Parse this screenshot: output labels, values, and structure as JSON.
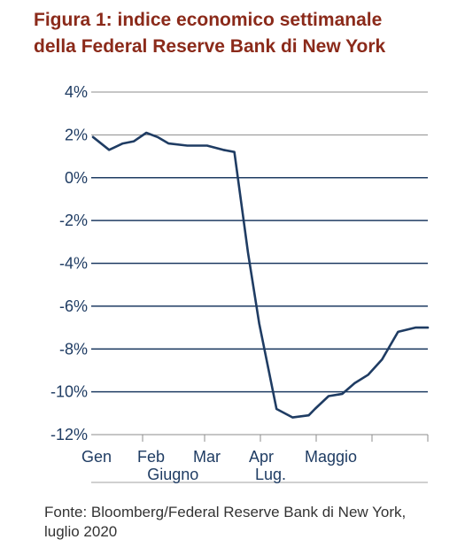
{
  "header": {
    "title_line1": "Figura 1: indice economico settimanale",
    "title_line2": "della Federal Reserve Bank di New York"
  },
  "footer": {
    "source_line1": "Fonte: Bloomberg/Federal Reserve Bank di New York,",
    "source_line2": "luglio 2020"
  },
  "colors": {
    "title": "#8B2A1A",
    "line": "#1F3C63",
    "grid": "#1F3C63",
    "axis_text": "#1F3C63"
  },
  "chart_data": {
    "type": "line",
    "title": "Figura 1: indice economico settimanale della Federal Reserve Bank di New York",
    "xlabel": "",
    "ylabel": "",
    "ylim": [
      -12,
      4
    ],
    "yticks": [
      4,
      2,
      0,
      -2,
      -4,
      -6,
      -8,
      -10,
      -12
    ],
    "ytick_labels": [
      "4%",
      "2%",
      "0%",
      "-2%",
      "-4%",
      "-6%",
      "-8%",
      "-10%",
      "-12%"
    ],
    "xlim": [
      0,
      27
    ],
    "x_tick_positions": [
      4,
      9,
      13.5,
      18,
      22.5,
      27
    ],
    "x_labels": [
      {
        "text": "Gen",
        "x": 0,
        "row": 1
      },
      {
        "text": "Feb",
        "x": 4.5,
        "row": 1
      },
      {
        "text": "Mar",
        "x": 9,
        "row": 1
      },
      {
        "text": "Apr",
        "x": 13.5,
        "row": 1
      },
      {
        "text": "Maggio",
        "x": 18,
        "row": 1
      },
      {
        "text": "Giugno",
        "x": 5.3,
        "row": 2
      },
      {
        "text": "Lug.",
        "x": 14,
        "row": 2
      }
    ],
    "grid": true,
    "series": [
      {
        "x": [
          0,
          1.3,
          2.4,
          3.3,
          4.3,
          5.2,
          6.1,
          7.6,
          9.2,
          10.5,
          11.4,
          12.5,
          13.4,
          14.8,
          16.1,
          17.4,
          17.9,
          19.0,
          20.1,
          21.1,
          22.2,
          23.3,
          24.6,
          26.0,
          27.0
        ],
        "y": [
          1.9,
          1.3,
          1.6,
          1.7,
          2.1,
          1.9,
          1.6,
          1.5,
          1.5,
          1.3,
          1.2,
          -3.5,
          -6.8,
          -10.8,
          -11.2,
          -11.1,
          -10.8,
          -10.2,
          -10.1,
          -9.6,
          -9.2,
          -8.5,
          -7.2,
          -7.0,
          -7.0
        ]
      }
    ]
  }
}
